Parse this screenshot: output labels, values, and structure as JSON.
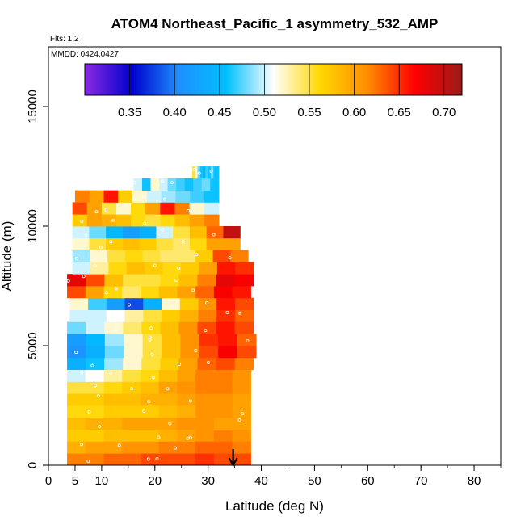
{
  "chart_data": {
    "type": "heatmap",
    "title": "ATOM4 Northeast_Pacific_1 asymmetry_532_AMP",
    "flights_note": "Flts: 1,2",
    "date_note": "MMDD: 0424,0427",
    "xlabel": "Latitude (deg N)",
    "ylabel": "Altitude (m)",
    "xlim": [
      0,
      85
    ],
    "ylim": [
      0,
      17500
    ],
    "xticks": [
      0,
      5,
      10,
      20,
      30,
      40,
      50,
      60,
      70,
      80
    ],
    "yticks": [
      0,
      5000,
      10000,
      15000
    ],
    "colorbar": {
      "min": 0.3,
      "max": 0.72,
      "ticks": [
        0.35,
        0.4,
        0.45,
        0.5,
        0.55,
        0.6,
        0.65,
        0.7
      ],
      "tick_labels": [
        "0.35",
        "0.40",
        "0.45",
        "0.50",
        "0.55",
        "0.60",
        "0.65",
        "0.70"
      ],
      "colors": [
        "#8a2be2",
        "#0000cd",
        "#1e90ff",
        "#00bfff",
        "#ffffff",
        "#ffd700",
        "#ff8c00",
        "#ff0000",
        "#9b1b1b"
      ]
    },
    "arrow_latitude": 34.7,
    "bands": [
      {
        "alt": 250,
        "lat_min": 3.5,
        "lat_max": 38.0,
        "values": [
          0.62,
          0.62,
          0.63,
          0.63,
          0.64,
          0.64,
          0.64,
          0.65,
          0.64,
          0.64
        ]
      },
      {
        "alt": 750,
        "lat_min": 3.5,
        "lat_max": 38.0,
        "values": [
          0.59,
          0.6,
          0.6,
          0.61,
          0.61,
          0.62,
          0.62,
          0.63,
          0.63,
          0.62
        ]
      },
      {
        "alt": 1250,
        "lat_min": 3.5,
        "lat_max": 38.0,
        "values": [
          0.57,
          0.57,
          0.58,
          0.58,
          0.58,
          0.59,
          0.6,
          0.61,
          0.62,
          0.61
        ]
      },
      {
        "alt": 1750,
        "lat_min": 3.5,
        "lat_max": 38.0,
        "values": [
          0.58,
          0.59,
          0.59,
          0.6,
          0.6,
          0.6,
          0.61,
          0.61,
          0.6,
          0.6
        ]
      },
      {
        "alt": 2250,
        "lat_min": 3.5,
        "lat_max": 38.0,
        "values": [
          0.56,
          0.56,
          0.57,
          0.57,
          0.57,
          0.58,
          0.59,
          0.61,
          0.61,
          0.6
        ]
      },
      {
        "alt": 2750,
        "lat_min": 3.5,
        "lat_max": 38.0,
        "values": [
          0.57,
          0.57,
          0.58,
          0.58,
          0.59,
          0.59,
          0.6,
          0.61,
          0.61,
          0.6
        ]
      },
      {
        "alt": 3250,
        "lat_min": 3.5,
        "lat_max": 38.0,
        "values": [
          0.55,
          0.55,
          0.56,
          0.57,
          0.58,
          0.6,
          0.61,
          0.62,
          0.62,
          0.61
        ]
      },
      {
        "alt": 3750,
        "lat_min": 3.5,
        "lat_max": 38.0,
        "values": [
          0.5,
          0.51,
          0.53,
          0.55,
          0.56,
          0.58,
          0.6,
          0.62,
          0.62,
          0.61
        ]
      },
      {
        "alt": 4250,
        "lat_min": 3.5,
        "lat_max": 38.5,
        "values": [
          0.44,
          0.46,
          0.49,
          0.52,
          0.55,
          0.57,
          0.6,
          0.63,
          0.64,
          0.62
        ]
      },
      {
        "alt": 4750,
        "lat_min": 3.5,
        "lat_max": 39.0,
        "values": [
          0.41,
          0.44,
          0.48,
          0.52,
          0.55,
          0.58,
          0.61,
          0.64,
          0.67,
          0.64
        ]
      },
      {
        "alt": 5250,
        "lat_min": 3.5,
        "lat_max": 39.0,
        "values": [
          0.42,
          0.45,
          0.49,
          0.52,
          0.55,
          0.58,
          0.61,
          0.65,
          0.66,
          0.63
        ]
      },
      {
        "alt": 5750,
        "lat_min": 3.5,
        "lat_max": 38.5,
        "values": [
          0.48,
          0.5,
          0.52,
          0.54,
          0.56,
          0.58,
          0.61,
          0.64,
          0.66,
          0.64
        ]
      },
      {
        "alt": 6250,
        "lat_min": 4.0,
        "lat_max": 38.5,
        "values": [
          0.5,
          0.5,
          0.51,
          0.53,
          0.55,
          0.57,
          0.59,
          0.62,
          0.65,
          0.63
        ]
      },
      {
        "alt": 6750,
        "lat_min": 4.0,
        "lat_max": 38.5,
        "values": [
          0.52,
          0.47,
          0.42,
          0.38,
          0.44,
          0.52,
          0.57,
          0.61,
          0.66,
          0.64
        ]
      },
      {
        "alt": 7250,
        "lat_min": 3.5,
        "lat_max": 38.0,
        "values": [
          0.64,
          0.6,
          0.56,
          0.54,
          0.56,
          0.58,
          0.6,
          0.63,
          0.67,
          0.66
        ]
      },
      {
        "alt": 7750,
        "lat_min": 3.5,
        "lat_max": 38.5,
        "values": [
          0.68,
          0.64,
          0.58,
          0.55,
          0.55,
          0.56,
          0.58,
          0.62,
          0.68,
          0.67
        ]
      },
      {
        "alt": 8250,
        "lat_min": 4.5,
        "lat_max": 38.5,
        "values": [
          0.5,
          0.53,
          0.56,
          0.58,
          0.57,
          0.56,
          0.57,
          0.6,
          0.66,
          0.65
        ]
      },
      {
        "alt": 8750,
        "lat_min": 4.5,
        "lat_max": 37.5,
        "values": [
          0.49,
          0.52,
          0.55,
          0.56,
          0.55,
          0.54,
          0.54,
          0.57,
          0.64,
          0.62
        ]
      },
      {
        "alt": 9250,
        "lat_min": 4.5,
        "lat_max": 36.0,
        "values": [
          0.52,
          0.55,
          0.57,
          0.58,
          0.57,
          0.55,
          0.54,
          0.56,
          0.6,
          0.6
        ]
      },
      {
        "alt": 9750,
        "lat_min": 4.5,
        "lat_max": 36.0,
        "values": [
          0.5,
          0.48,
          0.45,
          0.42,
          0.44,
          0.5,
          0.55,
          0.58,
          0.63,
          0.7
        ]
      },
      {
        "alt": 10250,
        "lat_min": 4.5,
        "lat_max": 32.0,
        "values": [
          0.57,
          0.6,
          0.59,
          0.58,
          0.56,
          0.55,
          0.56,
          0.58,
          0.6,
          0.62
        ]
      },
      {
        "alt": 10750,
        "lat_min": 4.5,
        "lat_max": 32.0,
        "values": [
          0.64,
          0.6,
          0.55,
          0.52,
          0.56,
          0.6,
          0.66,
          0.62,
          0.52,
          0.5
        ]
      },
      {
        "alt": 11250,
        "lat_min": 5.0,
        "lat_max": 32.0,
        "values": [
          0.62,
          0.6,
          0.66,
          0.57,
          0.52,
          0.5,
          0.49,
          0.48,
          0.47,
          0.46
        ]
      },
      {
        "alt": 11750,
        "lat_min": 16.0,
        "lat_max": 32.0,
        "values": [
          0.5,
          0.46,
          0.52,
          0.5,
          0.48,
          0.47,
          0.46,
          0.47,
          0.48,
          0.46
        ]
      },
      {
        "alt": 12250,
        "lat_min": 27.0,
        "lat_max": 32.0,
        "values": [
          0.55,
          0.52,
          0.48,
          0.46,
          0.45,
          0.47,
          0.46,
          0.48,
          0.46,
          0.46
        ]
      }
    ]
  }
}
